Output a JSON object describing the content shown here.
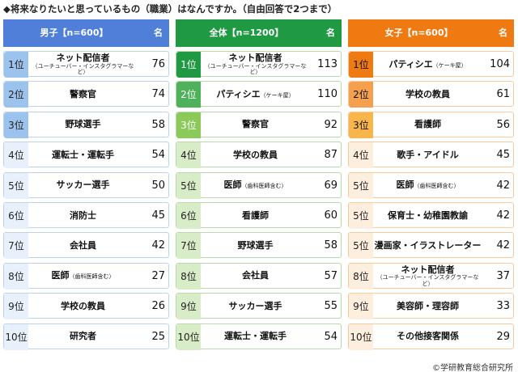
{
  "title": "◆将来なりたいと思っているもの（職業）はなんですか。（自由回答で2つまで）",
  "copyright": "©学研教育総合研究所",
  "colors": {
    "boys": "#4f7fd8",
    "all": "#1f9a43",
    "girls": "#f07a12"
  },
  "chart_data": [
    {
      "type": "table",
      "header": "男子【n=600】",
      "unit": "名",
      "rows": [
        {
          "rank": "1位",
          "job": "ネット配信者",
          "sub": "（ユーチューバー・インスタグラマーなど）",
          "note": "",
          "value": 76
        },
        {
          "rank": "2位",
          "job": "警察官",
          "sub": "",
          "note": "",
          "value": 74
        },
        {
          "rank": "3位",
          "job": "野球選手",
          "sub": "",
          "note": "",
          "value": 58
        },
        {
          "rank": "4位",
          "job": "運転士・運転手",
          "sub": "",
          "note": "",
          "value": 54
        },
        {
          "rank": "5位",
          "job": "サッカー選手",
          "sub": "",
          "note": "",
          "value": 50
        },
        {
          "rank": "6位",
          "job": "消防士",
          "sub": "",
          "note": "",
          "value": 45
        },
        {
          "rank": "7位",
          "job": "会社員",
          "sub": "",
          "note": "",
          "value": 42
        },
        {
          "rank": "8位",
          "job": "医師",
          "sub": "",
          "note": "（歯科医師含む）",
          "value": 27
        },
        {
          "rank": "9位",
          "job": "学校の教員",
          "sub": "",
          "note": "",
          "value": 26
        },
        {
          "rank": "10位",
          "job": "研究者",
          "sub": "",
          "note": "",
          "value": 25
        }
      ]
    },
    {
      "type": "table",
      "header": "全体【n=1200】",
      "unit": "名",
      "rows": [
        {
          "rank": "1位",
          "job": "ネット配信者",
          "sub": "（ユーチューバー・インスタグラマーなど）",
          "note": "",
          "value": 113
        },
        {
          "rank": "2位",
          "job": "パティシエ",
          "sub": "",
          "note": "（ケーキ屋）",
          "value": 110
        },
        {
          "rank": "3位",
          "job": "警察官",
          "sub": "",
          "note": "",
          "value": 92
        },
        {
          "rank": "4位",
          "job": "学校の教員",
          "sub": "",
          "note": "",
          "value": 87
        },
        {
          "rank": "5位",
          "job": "医師",
          "sub": "",
          "note": "（歯科医師含む）",
          "value": 69
        },
        {
          "rank": "6位",
          "job": "看護師",
          "sub": "",
          "note": "",
          "value": 60
        },
        {
          "rank": "7位",
          "job": "野球選手",
          "sub": "",
          "note": "",
          "value": 58
        },
        {
          "rank": "8位",
          "job": "会社員",
          "sub": "",
          "note": "",
          "value": 57
        },
        {
          "rank": "9位",
          "job": "サッカー選手",
          "sub": "",
          "note": "",
          "value": 55
        },
        {
          "rank": "10位",
          "job": "運転士・運転手",
          "sub": "",
          "note": "",
          "value": 54
        }
      ]
    },
    {
      "type": "table",
      "header": "女子【n=600】",
      "unit": "名",
      "rows": [
        {
          "rank": "1位",
          "job": "パティシエ",
          "sub": "",
          "note": "（ケーキ屋）",
          "value": 104
        },
        {
          "rank": "2位",
          "job": "学校の教員",
          "sub": "",
          "note": "",
          "value": 61
        },
        {
          "rank": "3位",
          "job": "看護師",
          "sub": "",
          "note": "",
          "value": 56
        },
        {
          "rank": "4位",
          "job": "歌手・アイドル",
          "sub": "",
          "note": "",
          "value": 45
        },
        {
          "rank": "5位",
          "job": "医師",
          "sub": "",
          "note": "（歯科医師含む）",
          "value": 42
        },
        {
          "rank": "5位",
          "job": "保育士・幼稚園教諭",
          "sub": "",
          "note": "",
          "value": 42
        },
        {
          "rank": "5位",
          "job": "漫画家・イラストレーター",
          "sub": "",
          "note": "",
          "value": 42
        },
        {
          "rank": "8位",
          "job": "ネット配信者",
          "sub": "（ユーチューバー・インスタグラマーなど）",
          "note": "",
          "value": 37
        },
        {
          "rank": "9位",
          "job": "美容師・理容師",
          "sub": "",
          "note": "",
          "value": 33
        },
        {
          "rank": "10位",
          "job": "その他接客関係",
          "sub": "",
          "note": "",
          "value": 29
        }
      ]
    }
  ]
}
